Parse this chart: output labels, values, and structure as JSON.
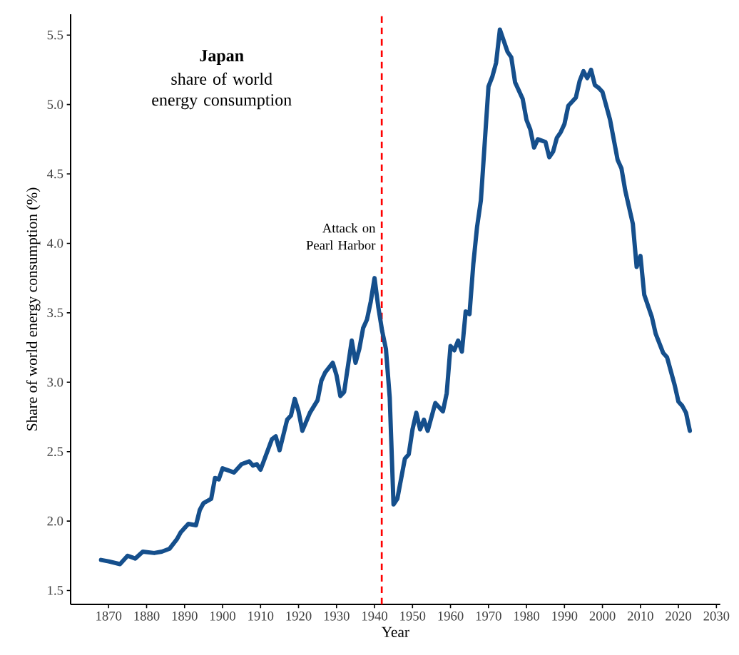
{
  "chart_data": {
    "type": "line",
    "title": "Japan",
    "subtitle": "share of world energy consumption",
    "xlabel": "Year",
    "ylabel": "Share of world energy consumption (%)",
    "x": [
      1868,
      1870,
      1873,
      1875,
      1877,
      1879,
      1882,
      1884,
      1886,
      1888,
      1889,
      1891,
      1893,
      1894,
      1895,
      1897,
      1898,
      1899,
      1900,
      1903,
      1905,
      1907,
      1908,
      1909,
      1910,
      1913,
      1914,
      1915,
      1917,
      1918,
      1919,
      1920,
      1921,
      1923,
      1925,
      1926,
      1927,
      1929,
      1930,
      1931,
      1932,
      1934,
      1935,
      1936,
      1937,
      1938,
      1939,
      1940,
      1941,
      1942,
      1943,
      1944,
      1945,
      1946,
      1948,
      1949,
      1950,
      1951,
      1952,
      1953,
      1954,
      1956,
      1958,
      1959,
      1960,
      1961,
      1962,
      1963,
      1964,
      1965,
      1966,
      1967,
      1968,
      1970,
      1971,
      1972,
      1973,
      1975,
      1976,
      1977,
      1979,
      1980,
      1981,
      1982,
      1983,
      1985,
      1986,
      1987,
      1988,
      1989,
      1990,
      1991,
      1992,
      1993,
      1994,
      1995,
      1996,
      1997,
      1998,
      1999,
      2000,
      2002,
      2004,
      2005,
      2006,
      2008,
      2009,
      2010,
      2011,
      2013,
      2014,
      2016,
      2017,
      2019,
      2020,
      2021,
      2022,
      2023
    ],
    "series": [
      {
        "color": "#154f8c",
        "values": [
          1.72,
          1.71,
          1.69,
          1.75,
          1.73,
          1.78,
          1.77,
          1.78,
          1.8,
          1.87,
          1.92,
          1.98,
          1.97,
          2.08,
          2.13,
          2.16,
          2.31,
          2.3,
          2.38,
          2.35,
          2.41,
          2.43,
          2.4,
          2.41,
          2.37,
          2.59,
          2.61,
          2.51,
          2.73,
          2.76,
          2.88,
          2.79,
          2.65,
          2.78,
          2.87,
          3.01,
          3.07,
          3.14,
          3.05,
          2.9,
          2.93,
          3.3,
          3.14,
          3.24,
          3.39,
          3.45,
          3.58,
          3.75,
          3.54,
          3.37,
          3.24,
          2.89,
          2.12,
          2.16,
          2.45,
          2.48,
          2.66,
          2.78,
          2.66,
          2.73,
          2.65,
          2.85,
          2.79,
          2.92,
          3.26,
          3.23,
          3.3,
          3.22,
          3.51,
          3.49,
          3.85,
          4.12,
          4.31,
          5.13,
          5.2,
          5.3,
          5.54,
          5.38,
          5.34,
          5.16,
          5.04,
          4.89,
          4.82,
          4.69,
          4.75,
          4.73,
          4.62,
          4.66,
          4.76,
          4.8,
          4.86,
          4.99,
          5.02,
          5.05,
          5.17,
          5.24,
          5.19,
          5.25,
          5.14,
          5.12,
          5.09,
          4.89,
          4.6,
          4.54,
          4.38,
          4.14,
          3.83,
          3.91,
          3.63,
          3.47,
          3.35,
          3.21,
          3.18,
          2.98,
          2.86,
          2.83,
          2.78,
          2.65
        ]
      }
    ],
    "xlim": [
      1860,
      2031
    ],
    "ylim": [
      1.4,
      5.65
    ],
    "xticks": [
      1870,
      1880,
      1890,
      1900,
      1910,
      1920,
      1930,
      1940,
      1950,
      1960,
      1970,
      1980,
      1990,
      2000,
      2010,
      2020,
      2030
    ],
    "yticks": [
      {
        "value": 1.5,
        "label": "1.5"
      },
      {
        "value": 2,
        "label": "2.0"
      },
      {
        "value": 2.5,
        "label": "2.5"
      },
      {
        "value": 3,
        "label": "3.0"
      },
      {
        "value": 3.5,
        "label": "3.5"
      },
      {
        "value": 4,
        "label": "4.0"
      },
      {
        "value": 4.5,
        "label": "4.5"
      },
      {
        "value": 5,
        "label": "5.0"
      },
      {
        "value": 5.5,
        "label": "5.5"
      }
    ],
    "ref_lines": [
      {
        "axis": "x",
        "value": 1941.9,
        "label": "Attack on Pearl Harbor",
        "color": "#ff0000",
        "line_style": "dashed"
      }
    ],
    "tick_labels": "xy"
  }
}
